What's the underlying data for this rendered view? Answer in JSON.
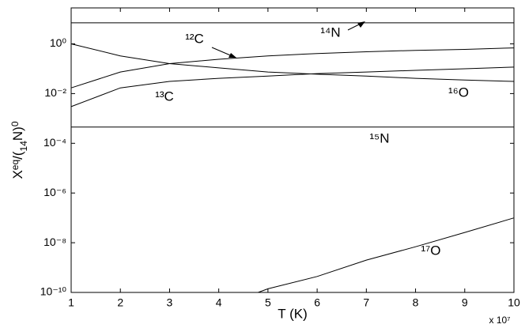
{
  "chart_data": {
    "type": "line",
    "xlabel": "T (K)",
    "x_multiplier": "x 10⁷",
    "ylabel": [
      "X",
      "eq",
      "/(",
      "14",
      "N)",
      "0"
    ],
    "xlim": [
      1,
      10
    ],
    "xticks": [
      1,
      2,
      3,
      4,
      5,
      6,
      7,
      8,
      9,
      10
    ],
    "ylim": [
      1e-10,
      28
    ],
    "yticks": [
      {
        "value": 1e-10,
        "label": "10⁻¹⁰"
      },
      {
        "value": 1e-08,
        "label": "10⁻⁸"
      },
      {
        "value": 1e-06,
        "label": "10⁻⁶"
      },
      {
        "value": 0.0001,
        "label": "10⁻⁴"
      },
      {
        "value": 0.01,
        "label": "10⁻²"
      },
      {
        "value": 1,
        "label": "10⁰"
      }
    ],
    "log_y": true,
    "grid": false,
    "series": [
      {
        "name": "¹⁴N",
        "color": "#000000",
        "x": [
          1,
          2,
          3,
          4,
          5,
          6,
          7,
          8,
          9,
          10
        ],
        "values": [
          7,
          7,
          7,
          7,
          7,
          7,
          7,
          7,
          7,
          7
        ]
      },
      {
        "name": "¹²C",
        "color": "#000000",
        "x": [
          1,
          2,
          3,
          4,
          5,
          6,
          7,
          8,
          9,
          10
        ],
        "values": [
          0.017,
          0.074,
          0.16,
          0.24,
          0.33,
          0.41,
          0.48,
          0.55,
          0.6,
          0.69
        ]
      },
      {
        "name": "¹³C",
        "color": "#000000",
        "x": [
          1,
          2,
          3,
          4,
          5,
          6,
          7,
          8,
          9,
          10
        ],
        "values": [
          0.003,
          0.017,
          0.031,
          0.041,
          0.051,
          0.064,
          0.074,
          0.086,
          0.1,
          0.116
        ]
      },
      {
        "name": "¹⁶O",
        "color": "#000000",
        "x": [
          1,
          2,
          3,
          4,
          5,
          6,
          7,
          8,
          9,
          10
        ],
        "values": [
          1,
          0.33,
          0.16,
          0.108,
          0.074,
          0.06,
          0.051,
          0.041,
          0.035,
          0.031
        ]
      },
      {
        "name": "¹⁵N",
        "color": "#000000",
        "x": [
          1,
          2,
          3,
          4,
          5,
          6,
          7,
          8,
          9,
          10
        ],
        "values": [
          0.00045,
          0.00045,
          0.00045,
          0.00045,
          0.00045,
          0.00045,
          0.00045,
          0.00045,
          0.00045,
          0.00045
        ]
      },
      {
        "name": "¹⁷O",
        "color": "#000000",
        "x": [
          4.8,
          5,
          6,
          7,
          8,
          9,
          10
        ],
        "values": [
          1e-10,
          1.4e-10,
          4.4e-10,
          2e-09,
          6.9e-09,
          2.6e-08,
          1e-07
        ]
      }
    ]
  }
}
